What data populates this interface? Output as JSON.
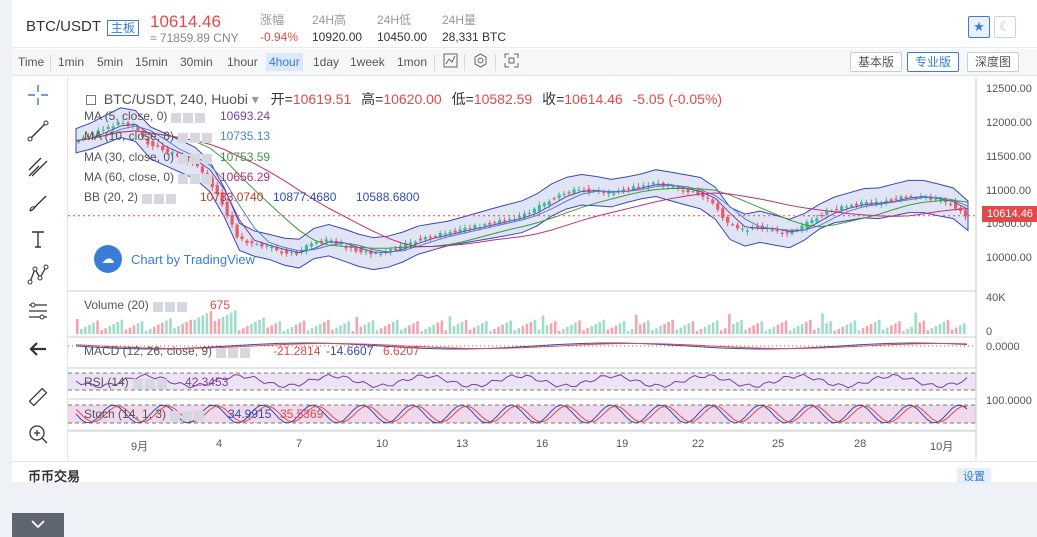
{
  "header": {
    "symbol": "BTC/USDT",
    "tag": "主板",
    "price": "10614.46",
    "cny": "≈ 71859.89 CNY",
    "stats": [
      {
        "label": "涨幅",
        "value": "-0.94%"
      },
      {
        "label": "24H高",
        "value": "10920.00"
      },
      {
        "label": "24H低",
        "value": "10450.00"
      },
      {
        "label": "24H量",
        "value": "28,331 BTC"
      }
    ],
    "star_icon": "star-icon",
    "theme_icon": "moon-icon"
  },
  "toolbar": {
    "timeframes": [
      "Time",
      "1min",
      "5min",
      "15min",
      "30min",
      "1hour",
      "4hour",
      "1day",
      "1week",
      "1mon"
    ],
    "active_timeframe": "4hour",
    "icons": [
      "indicator-icon",
      "settings-icon",
      "fullscreen-icon"
    ],
    "views": [
      "基本版",
      "专业版",
      "深度图"
    ],
    "active_view": "专业版"
  },
  "tools": [
    "crosshair-icon",
    "trendline-icon",
    "fork-icon",
    "brush-icon",
    "text-icon",
    "pattern-icon",
    "fib-icon",
    "arrow-left-icon",
    "ruler-icon",
    "zoom-icon"
  ],
  "collapse_icon": "chevron-down-icon",
  "legend": {
    "title": "BTC/USDT, 240, Huobi",
    "ohlc": [
      {
        "k": "开=",
        "v": "10619.51"
      },
      {
        "k": "高=",
        "v": "10620.00"
      },
      {
        "k": "低=",
        "v": "10582.59"
      },
      {
        "k": "收=",
        "v": "10614.46"
      }
    ],
    "change": "-5.05 (-0.05%)",
    "studies": [
      {
        "name": "MA (5, close, 0)",
        "values": [
          "10693.24"
        ],
        "colors": [
          "#7b3fa0"
        ]
      },
      {
        "name": "MA (10, close, 0)",
        "values": [
          "10735.13"
        ],
        "colors": [
          "#4a86c8"
        ]
      },
      {
        "name": "MA (30, close, 0)",
        "values": [
          "10753.59"
        ],
        "colors": [
          "#3a9a3a"
        ]
      },
      {
        "name": "MA (60, close, 0)",
        "values": [
          "10656.29"
        ],
        "colors": [
          "#b0306a"
        ]
      },
      {
        "name": "BB (20, 2)",
        "values": [
          "10733.0740",
          "10877.4680",
          "10588.6800"
        ],
        "colors": [
          "#c0392b",
          "#2e4fb3",
          "#2e4fb3"
        ]
      }
    ],
    "volume": {
      "name": "Volume (20)",
      "values": [
        "675"
      ],
      "colors": [
        "#e04a4a"
      ]
    },
    "macd": {
      "name": "MACD (12, 26, close, 9)",
      "values": [
        "-21.2814",
        "-14.6607",
        "6.6207"
      ],
      "colors": [
        "#e04a4a",
        "#2e4fb3",
        "#e04a4a"
      ]
    },
    "rsi": {
      "name": "RSI (14)",
      "values": [
        "42.3453"
      ],
      "colors": [
        "#7b3fa0"
      ]
    },
    "stoch": {
      "name": "Stoch (14, 1, 3)",
      "values": [
        "34.9915",
        "35.5369"
      ],
      "colors": [
        "#2e4fb3",
        "#e04a4a"
      ]
    }
  },
  "watermark": "Chart by TradingView",
  "last_price_label": "10614.46",
  "chart_data": {
    "type": "candlestick",
    "symbol": "BTC/USDT",
    "interval": "240",
    "y_axis_ticks": [
      12500,
      12000,
      11500,
      11000,
      10500,
      10000
    ],
    "y_axis_labels": [
      "12500.00",
      "12000.00",
      "11500.00",
      "11000.00",
      "10500.00",
      "10000.00"
    ],
    "volume_axis_labels": [
      "40K",
      "0"
    ],
    "macd_axis_label": "0.0000",
    "stoch_axis_label": "100.0000",
    "x_axis_labels": [
      "9月",
      "4",
      "7",
      "10",
      "13",
      "16",
      "19",
      "22",
      "25",
      "28",
      "10月"
    ],
    "close_series": [
      11730,
      11800,
      11900,
      12000,
      11950,
      11700,
      11600,
      11500,
      11400,
      11200,
      10800,
      10300,
      10200,
      10150,
      10080,
      10050,
      10200,
      10250,
      10180,
      10100,
      10050,
      10080,
      10150,
      10250,
      10300,
      10350,
      10400,
      10450,
      10500,
      10550,
      10600,
      10700,
      10850,
      10950,
      11000,
      10980,
      10950,
      11000,
      11050,
      11100,
      11050,
      11000,
      10950,
      10800,
      10500,
      10400,
      10450,
      10400,
      10350,
      10450,
      10600,
      10700,
      10750,
      10800,
      10800,
      10850,
      10900,
      10900,
      10850,
      10800,
      10614
    ]
  }
}
